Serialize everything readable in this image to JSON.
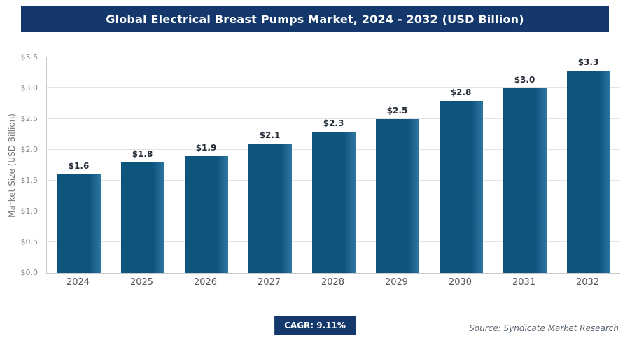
{
  "header": {
    "title": "Global Electrical Breast Pumps Market, 2024 - 2032 (USD Billion)"
  },
  "chart_data": {
    "type": "bar",
    "title": "Global Electrical Breast Pumps Market, 2024 - 2032 (USD Billion)",
    "categories": [
      "2024",
      "2025",
      "2026",
      "2027",
      "2028",
      "2029",
      "2030",
      "2031",
      "2032"
    ],
    "values": [
      1.6,
      1.8,
      1.9,
      2.1,
      2.3,
      2.5,
      2.8,
      3.0,
      3.3
    ],
    "value_labels": [
      "$1.6",
      "$1.8",
      "$1.9",
      "$2.1",
      "$2.3",
      "$2.5",
      "$2.8",
      "$3.0",
      "$3.3"
    ],
    "xlabel": "",
    "ylabel": "Market Size (USD Billion)",
    "ylim": [
      0,
      3.5
    ],
    "ytick_values": [
      0,
      0.5,
      1.0,
      1.5,
      2.0,
      2.5,
      3.0,
      3.5
    ],
    "ytick_labels": [
      "$0.0",
      "$0.5",
      "$1.0",
      "$1.5",
      "$2.0",
      "$2.5",
      "$3.0",
      "$3.5"
    ],
    "grid": "horizontal",
    "legend": "none",
    "bar_color": "#0e557e",
    "bar_highlight_color": "#2d76a0",
    "header_color": "#14386b"
  },
  "footer": {
    "cagr_label": "CAGR: 9.11%",
    "source": "Source: Syndicate Market Research"
  }
}
